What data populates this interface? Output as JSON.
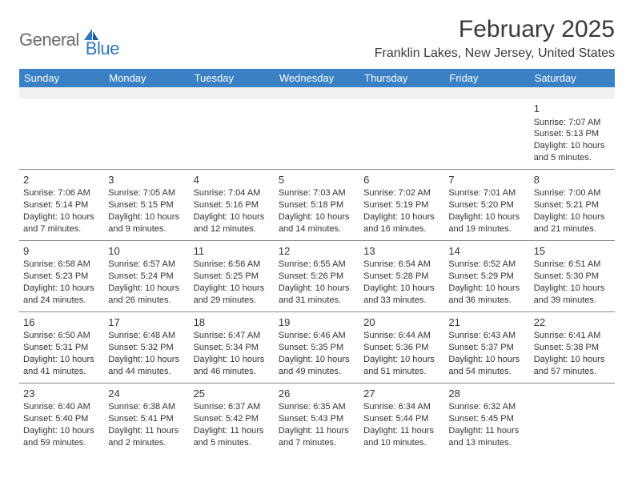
{
  "logo": {
    "text1": "General",
    "text2": "Blue"
  },
  "title": "February 2025",
  "location": "Franklin Lakes, New Jersey, United States",
  "colors": {
    "header_bg": "#3a80c4",
    "header_text": "#ffffff",
    "logo_gray": "#6a6a6a",
    "logo_blue": "#2f77bb",
    "border": "#888888",
    "empty_bg": "#f0f0f0",
    "text": "#333333"
  },
  "day_headers": [
    "Sunday",
    "Monday",
    "Tuesday",
    "Wednesday",
    "Thursday",
    "Friday",
    "Saturday"
  ],
  "weeks": [
    [
      {
        "empty": true
      },
      {
        "empty": true
      },
      {
        "empty": true
      },
      {
        "empty": true
      },
      {
        "empty": true
      },
      {
        "empty": true
      },
      {
        "n": "1",
        "sr": "Sunrise: 7:07 AM",
        "ss": "Sunset: 5:13 PM",
        "d1": "Daylight: 10 hours",
        "d2": "and 5 minutes."
      }
    ],
    [
      {
        "n": "2",
        "sr": "Sunrise: 7:06 AM",
        "ss": "Sunset: 5:14 PM",
        "d1": "Daylight: 10 hours",
        "d2": "and 7 minutes."
      },
      {
        "n": "3",
        "sr": "Sunrise: 7:05 AM",
        "ss": "Sunset: 5:15 PM",
        "d1": "Daylight: 10 hours",
        "d2": "and 9 minutes."
      },
      {
        "n": "4",
        "sr": "Sunrise: 7:04 AM",
        "ss": "Sunset: 5:16 PM",
        "d1": "Daylight: 10 hours",
        "d2": "and 12 minutes."
      },
      {
        "n": "5",
        "sr": "Sunrise: 7:03 AM",
        "ss": "Sunset: 5:18 PM",
        "d1": "Daylight: 10 hours",
        "d2": "and 14 minutes."
      },
      {
        "n": "6",
        "sr": "Sunrise: 7:02 AM",
        "ss": "Sunset: 5:19 PM",
        "d1": "Daylight: 10 hours",
        "d2": "and 16 minutes."
      },
      {
        "n": "7",
        "sr": "Sunrise: 7:01 AM",
        "ss": "Sunset: 5:20 PM",
        "d1": "Daylight: 10 hours",
        "d2": "and 19 minutes."
      },
      {
        "n": "8",
        "sr": "Sunrise: 7:00 AM",
        "ss": "Sunset: 5:21 PM",
        "d1": "Daylight: 10 hours",
        "d2": "and 21 minutes."
      }
    ],
    [
      {
        "n": "9",
        "sr": "Sunrise: 6:58 AM",
        "ss": "Sunset: 5:23 PM",
        "d1": "Daylight: 10 hours",
        "d2": "and 24 minutes."
      },
      {
        "n": "10",
        "sr": "Sunrise: 6:57 AM",
        "ss": "Sunset: 5:24 PM",
        "d1": "Daylight: 10 hours",
        "d2": "and 26 minutes."
      },
      {
        "n": "11",
        "sr": "Sunrise: 6:56 AM",
        "ss": "Sunset: 5:25 PM",
        "d1": "Daylight: 10 hours",
        "d2": "and 29 minutes."
      },
      {
        "n": "12",
        "sr": "Sunrise: 6:55 AM",
        "ss": "Sunset: 5:26 PM",
        "d1": "Daylight: 10 hours",
        "d2": "and 31 minutes."
      },
      {
        "n": "13",
        "sr": "Sunrise: 6:54 AM",
        "ss": "Sunset: 5:28 PM",
        "d1": "Daylight: 10 hours",
        "d2": "and 33 minutes."
      },
      {
        "n": "14",
        "sr": "Sunrise: 6:52 AM",
        "ss": "Sunset: 5:29 PM",
        "d1": "Daylight: 10 hours",
        "d2": "and 36 minutes."
      },
      {
        "n": "15",
        "sr": "Sunrise: 6:51 AM",
        "ss": "Sunset: 5:30 PM",
        "d1": "Daylight: 10 hours",
        "d2": "and 39 minutes."
      }
    ],
    [
      {
        "n": "16",
        "sr": "Sunrise: 6:50 AM",
        "ss": "Sunset: 5:31 PM",
        "d1": "Daylight: 10 hours",
        "d2": "and 41 minutes."
      },
      {
        "n": "17",
        "sr": "Sunrise: 6:48 AM",
        "ss": "Sunset: 5:32 PM",
        "d1": "Daylight: 10 hours",
        "d2": "and 44 minutes."
      },
      {
        "n": "18",
        "sr": "Sunrise: 6:47 AM",
        "ss": "Sunset: 5:34 PM",
        "d1": "Daylight: 10 hours",
        "d2": "and 46 minutes."
      },
      {
        "n": "19",
        "sr": "Sunrise: 6:46 AM",
        "ss": "Sunset: 5:35 PM",
        "d1": "Daylight: 10 hours",
        "d2": "and 49 minutes."
      },
      {
        "n": "20",
        "sr": "Sunrise: 6:44 AM",
        "ss": "Sunset: 5:36 PM",
        "d1": "Daylight: 10 hours",
        "d2": "and 51 minutes."
      },
      {
        "n": "21",
        "sr": "Sunrise: 6:43 AM",
        "ss": "Sunset: 5:37 PM",
        "d1": "Daylight: 10 hours",
        "d2": "and 54 minutes."
      },
      {
        "n": "22",
        "sr": "Sunrise: 6:41 AM",
        "ss": "Sunset: 5:38 PM",
        "d1": "Daylight: 10 hours",
        "d2": "and 57 minutes."
      }
    ],
    [
      {
        "n": "23",
        "sr": "Sunrise: 6:40 AM",
        "ss": "Sunset: 5:40 PM",
        "d1": "Daylight: 10 hours",
        "d2": "and 59 minutes."
      },
      {
        "n": "24",
        "sr": "Sunrise: 6:38 AM",
        "ss": "Sunset: 5:41 PM",
        "d1": "Daylight: 11 hours",
        "d2": "and 2 minutes."
      },
      {
        "n": "25",
        "sr": "Sunrise: 6:37 AM",
        "ss": "Sunset: 5:42 PM",
        "d1": "Daylight: 11 hours",
        "d2": "and 5 minutes."
      },
      {
        "n": "26",
        "sr": "Sunrise: 6:35 AM",
        "ss": "Sunset: 5:43 PM",
        "d1": "Daylight: 11 hours",
        "d2": "and 7 minutes."
      },
      {
        "n": "27",
        "sr": "Sunrise: 6:34 AM",
        "ss": "Sunset: 5:44 PM",
        "d1": "Daylight: 11 hours",
        "d2": "and 10 minutes."
      },
      {
        "n": "28",
        "sr": "Sunrise: 6:32 AM",
        "ss": "Sunset: 5:45 PM",
        "d1": "Daylight: 11 hours",
        "d2": "and 13 minutes."
      },
      {
        "empty": true
      }
    ]
  ]
}
